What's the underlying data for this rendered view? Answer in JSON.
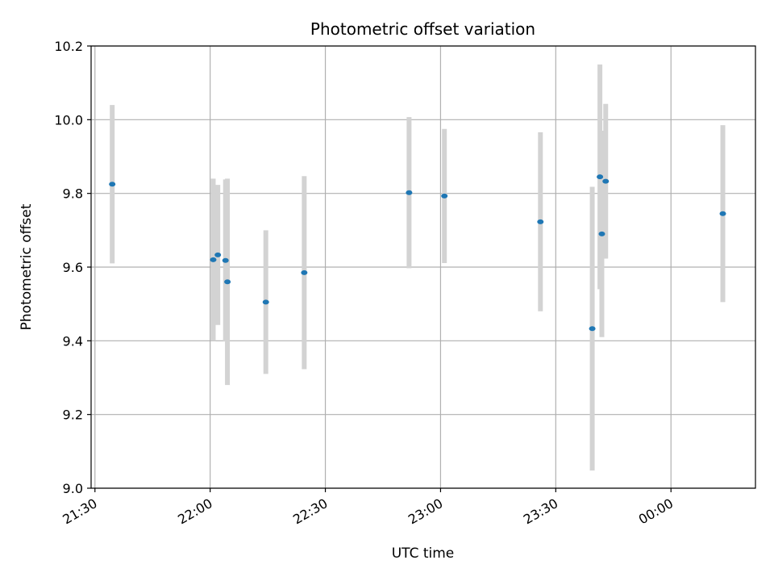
{
  "chart_data": {
    "type": "scatter",
    "title": "Photometric offset variation",
    "xlabel": "UTC time",
    "ylabel": "Photometric offset",
    "x_axis_kind": "time",
    "xlim": [
      "21:29",
      "00:22"
    ],
    "ylim": [
      9.0,
      10.2
    ],
    "x_ticks": [
      "21:30",
      "22:00",
      "22:30",
      "23:00",
      "23:30",
      "00:00"
    ],
    "y_ticks": [
      9.0,
      9.2,
      9.4,
      9.6,
      9.8,
      10.0,
      10.2
    ],
    "y_tick_labels": [
      "9.0",
      "9.2",
      "9.4",
      "9.6",
      "9.8",
      "10.0",
      "10.2"
    ],
    "grid": true,
    "colors": {
      "marker": "#1f77b4",
      "errorbar": "#d3d3d3",
      "grid": "#b0b0b0"
    },
    "points": [
      {
        "x": "21:34.5",
        "y": 9.825,
        "err": 0.215
      },
      {
        "x": "22:00.8",
        "y": 9.62,
        "err": 0.22
      },
      {
        "x": "22:02.0",
        "y": 9.633,
        "err": 0.19
      },
      {
        "x": "22:04.0",
        "y": 9.618,
        "err": 0.22
      },
      {
        "x": "22:04.5",
        "y": 9.56,
        "err": 0.28
      },
      {
        "x": "22:14.5",
        "y": 9.505,
        "err": 0.195
      },
      {
        "x": "22:24.5",
        "y": 9.585,
        "err": 0.262
      },
      {
        "x": "22:51.8",
        "y": 9.802,
        "err": 0.205
      },
      {
        "x": "23:01.0",
        "y": 9.793,
        "err": 0.182
      },
      {
        "x": "23:26.0",
        "y": 9.723,
        "err": 0.243
      },
      {
        "x": "23:39.5",
        "y": 9.433,
        "err": 0.385
      },
      {
        "x": "23:41.5",
        "y": 9.845,
        "err": 0.305
      },
      {
        "x": "23:42.0",
        "y": 9.69,
        "err": 0.28
      },
      {
        "x": "23:43.0",
        "y": 9.833,
        "err": 0.21
      },
      {
        "x": "00:13.5",
        "y": 9.745,
        "err": 0.24
      }
    ]
  }
}
